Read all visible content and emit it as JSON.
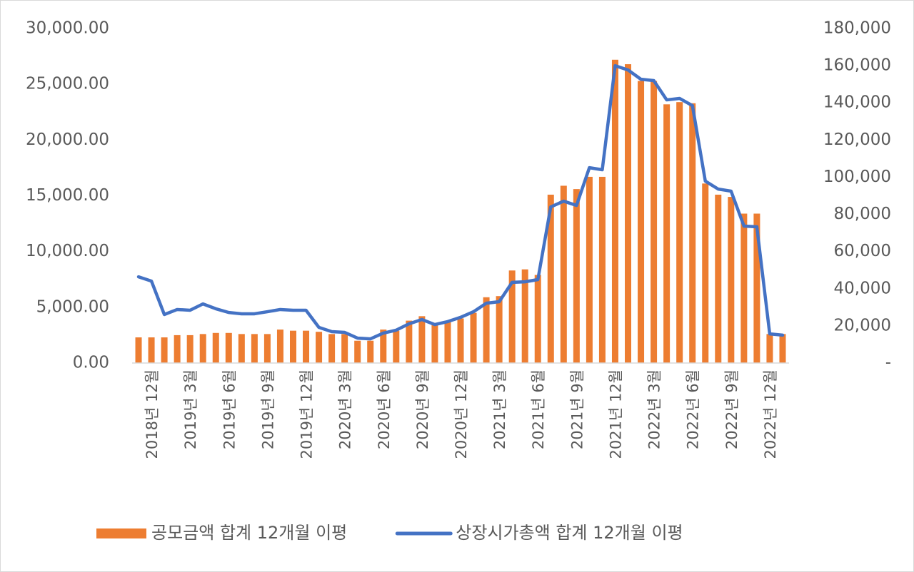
{
  "chart_data": {
    "type": "bar",
    "categories": [
      null,
      "2018년 12월",
      null,
      null,
      "2019년 3월",
      null,
      null,
      "2019년 6월",
      null,
      null,
      "2019년 9월",
      null,
      null,
      "2019년 12월",
      null,
      null,
      "2020년 3월",
      null,
      null,
      "2020년 6월",
      null,
      null,
      "2020년 9월",
      null,
      null,
      "2020년 12월",
      null,
      null,
      "2021년 3월",
      null,
      null,
      "2021년 6월",
      null,
      null,
      "2021년 9월",
      null,
      null,
      "2021년 12월",
      null,
      null,
      "2022년 3월",
      null,
      null,
      "2022년 6월",
      null,
      null,
      "2022년 9월",
      null,
      null,
      "2022년 12월",
      null
    ],
    "series": [
      {
        "name": "공모금액 합계 12개월 이평",
        "type": "bar",
        "color": "#ED7D31",
        "values": [
          2300,
          2300,
          2300,
          2500,
          2500,
          2600,
          2700,
          2700,
          2600,
          2600,
          2600,
          3000,
          2900,
          2900,
          2800,
          2600,
          2600,
          2000,
          2000,
          3000,
          2900,
          3800,
          4200,
          3500,
          3700,
          4000,
          4500,
          5900,
          6000,
          8300,
          8400,
          7900,
          15100,
          15900,
          15600,
          16700,
          16700,
          27200,
          26800,
          25300,
          25300,
          23200,
          23400,
          23300,
          16100,
          15100,
          14900,
          13400,
          13400,
          2600,
          2600
        ]
      },
      {
        "name": "상장시가총액 합계 12개월 이평",
        "type": "line",
        "axis": "y2",
        "color": "#4472C4",
        "values": [
          46400,
          44100,
          26100,
          28800,
          28400,
          31800,
          29200,
          27200,
          26500,
          26500,
          27600,
          28800,
          28400,
          28400,
          19200,
          16900,
          16500,
          13400,
          13000,
          16100,
          17700,
          21100,
          23400,
          20700,
          22300,
          24600,
          27600,
          32200,
          33000,
          43400,
          43700,
          44900,
          84000,
          87100,
          84800,
          105100,
          104000,
          160000,
          157700,
          152700,
          152000,
          141600,
          142400,
          138500,
          97900,
          93600,
          92500,
          73700,
          73300,
          15700,
          15000
        ]
      }
    ],
    "ylim": [
      0,
      30000
    ],
    "yticks": [
      {
        "value": 0,
        "label": "0.00"
      },
      {
        "value": 5000,
        "label": "5,000.00"
      },
      {
        "value": 10000,
        "label": "10,000.00"
      },
      {
        "value": 15000,
        "label": "15,000.00"
      },
      {
        "value": 20000,
        "label": "20,000.00"
      },
      {
        "value": 25000,
        "label": "25,000.00"
      },
      {
        "value": 30000,
        "label": "30,000.00"
      }
    ],
    "y2lim": [
      0,
      180000
    ],
    "y2ticks": [
      {
        "value": 0,
        "label": "-"
      },
      {
        "value": 20000,
        "label": "20,000"
      },
      {
        "value": 40000,
        "label": "40,000"
      },
      {
        "value": 60000,
        "label": "60,000"
      },
      {
        "value": 80000,
        "label": "80,000"
      },
      {
        "value": 100000,
        "label": "100,000"
      },
      {
        "value": 120000,
        "label": "120,000"
      },
      {
        "value": 140000,
        "label": "140,000"
      },
      {
        "value": 160000,
        "label": "160,000"
      },
      {
        "value": 180000,
        "label": "180,000"
      }
    ],
    "legend": "bottom"
  }
}
